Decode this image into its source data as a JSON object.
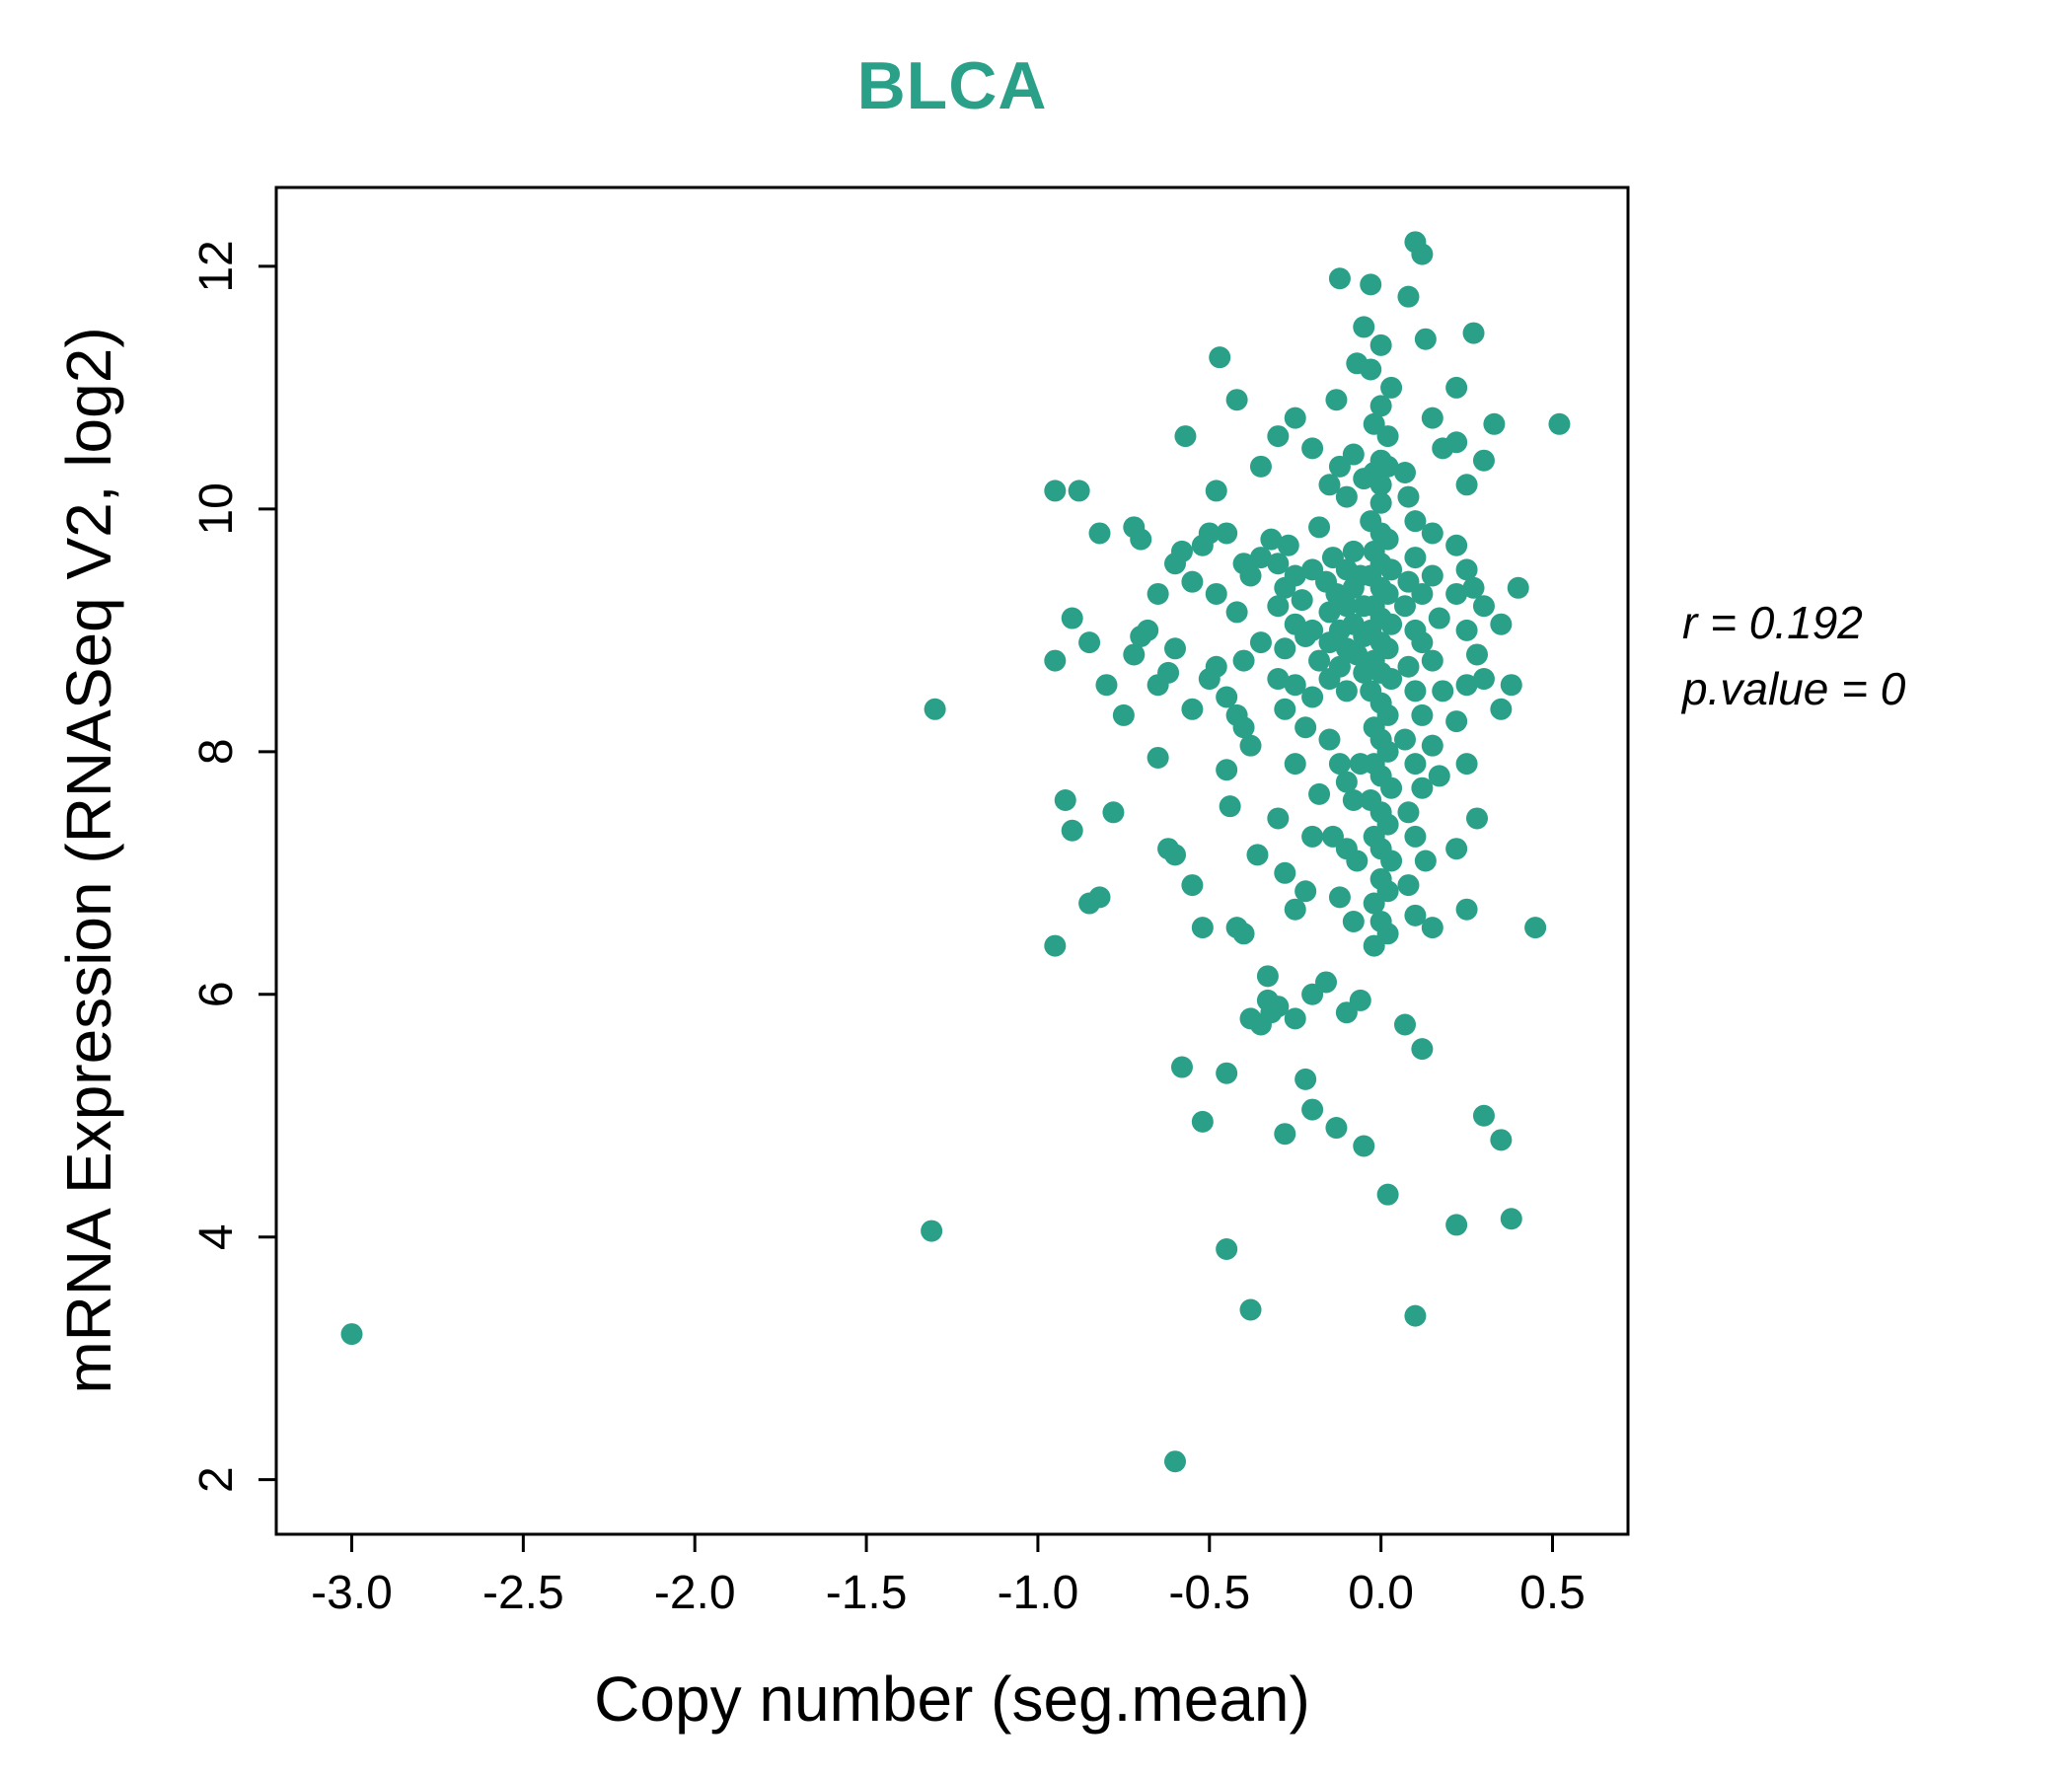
{
  "title": "BLCA",
  "accent_color": "#2BA089",
  "annotation": {
    "line1": "r = 0.192",
    "line2": "p.value = 0"
  },
  "chart_data": {
    "type": "scatter",
    "title": "BLCA",
    "xlabel": "Copy number (seg.mean)",
    "ylabel": "mRNA Expression (RNASeq V2, log2)",
    "xlim": [
      -3.22,
      0.72
    ],
    "ylim": [
      1.55,
      12.65
    ],
    "x_ticks": [
      -3.0,
      -2.5,
      -2.0,
      -1.5,
      -1.0,
      -0.5,
      0.0,
      0.5
    ],
    "x_tick_labels": [
      "-3.0",
      "-2.5",
      "-2.0",
      "-1.5",
      "-1.0",
      "-0.5",
      "0.0",
      "0.5"
    ],
    "y_ticks": [
      2,
      4,
      6,
      8,
      10,
      12
    ],
    "y_tick_labels": [
      "2",
      "4",
      "6",
      "8",
      "10",
      "12"
    ],
    "grid": false,
    "legend": "none",
    "point_color": "#2BA089",
    "correlation_r": 0.192,
    "p_value": 0,
    "annotations": [
      "r = 0.192",
      "p.value = 0"
    ],
    "points": [
      [
        -3.0,
        3.2
      ],
      [
        -1.3,
        8.35
      ],
      [
        -1.31,
        4.05
      ],
      [
        -0.6,
        2.15
      ],
      [
        -0.45,
        3.9
      ],
      [
        -0.38,
        3.4
      ],
      [
        -0.48,
        10.15
      ],
      [
        -0.95,
        10.15
      ],
      [
        -0.88,
        10.15
      ],
      [
        -0.9,
        9.1
      ],
      [
        -0.95,
        8.75
      ],
      [
        -0.92,
        7.6
      ],
      [
        -0.95,
        6.4
      ],
      [
        -0.9,
        7.35
      ],
      [
        -0.85,
        8.9
      ],
      [
        -0.82,
        9.8
      ],
      [
        -0.8,
        8.55
      ],
      [
        -0.85,
        6.75
      ],
      [
        -0.82,
        6.8
      ],
      [
        -0.78,
        7.5
      ],
      [
        -0.75,
        8.3
      ],
      [
        -0.72,
        9.85
      ],
      [
        -0.7,
        9.75
      ],
      [
        -0.72,
        8.8
      ],
      [
        -0.7,
        8.95
      ],
      [
        -0.68,
        9.0
      ],
      [
        -0.65,
        9.3
      ],
      [
        -0.65,
        8.55
      ],
      [
        -0.62,
        8.65
      ],
      [
        -0.6,
        9.55
      ],
      [
        -0.6,
        8.85
      ],
      [
        -0.58,
        9.65
      ],
      [
        -0.62,
        7.2
      ],
      [
        -0.6,
        7.15
      ],
      [
        -0.65,
        7.95
      ],
      [
        -0.58,
        5.4
      ],
      [
        -0.55,
        8.35
      ],
      [
        -0.55,
        9.4
      ],
      [
        -0.57,
        10.6
      ],
      [
        -0.55,
        6.9
      ],
      [
        -0.52,
        4.95
      ],
      [
        -0.52,
        9.7
      ],
      [
        -0.5,
        9.8
      ],
      [
        -0.5,
        8.6
      ],
      [
        -0.48,
        8.7
      ],
      [
        -0.48,
        9.3
      ],
      [
        -0.45,
        9.8
      ],
      [
        -0.45,
        8.45
      ],
      [
        -0.45,
        7.85
      ],
      [
        -0.42,
        8.3
      ],
      [
        -0.42,
        9.15
      ],
      [
        -0.4,
        9.55
      ],
      [
        -0.4,
        8.75
      ],
      [
        -0.4,
        8.2
      ],
      [
        -0.38,
        9.45
      ],
      [
        -0.38,
        8.05
      ],
      [
        -0.35,
        9.6
      ],
      [
        -0.35,
        8.9
      ],
      [
        -0.42,
        6.55
      ],
      [
        -0.4,
        6.5
      ],
      [
        -0.45,
        5.35
      ],
      [
        -0.38,
        5.8
      ],
      [
        -0.35,
        5.75
      ],
      [
        -0.52,
        6.55
      ],
      [
        -0.36,
        7.15
      ],
      [
        -0.44,
        7.55
      ],
      [
        -0.47,
        11.25
      ],
      [
        -0.42,
        10.9
      ],
      [
        -0.35,
        10.35
      ],
      [
        -0.33,
        5.95
      ],
      [
        -0.32,
        5.85
      ],
      [
        -0.32,
        9.75
      ],
      [
        -0.3,
        9.55
      ],
      [
        -0.3,
        9.2
      ],
      [
        -0.3,
        8.6
      ],
      [
        -0.28,
        9.35
      ],
      [
        -0.28,
        8.85
      ],
      [
        -0.28,
        8.35
      ],
      [
        -0.27,
        9.7
      ],
      [
        -0.25,
        9.45
      ],
      [
        -0.25,
        9.05
      ],
      [
        -0.25,
        8.55
      ],
      [
        -0.25,
        7.9
      ],
      [
        -0.23,
        9.25
      ],
      [
        -0.22,
        8.95
      ],
      [
        -0.22,
        8.2
      ],
      [
        -0.2,
        9.5
      ],
      [
        -0.2,
        9.0
      ],
      [
        -0.2,
        8.45
      ],
      [
        -0.3,
        7.45
      ],
      [
        -0.28,
        7.0
      ],
      [
        -0.25,
        6.7
      ],
      [
        -0.22,
        6.85
      ],
      [
        -0.2,
        7.3
      ],
      [
        -0.33,
        6.15
      ],
      [
        -0.3,
        5.9
      ],
      [
        -0.25,
        5.8
      ],
      [
        -0.2,
        6.0
      ],
      [
        -0.22,
        5.3
      ],
      [
        -0.3,
        10.6
      ],
      [
        -0.25,
        10.75
      ],
      [
        -0.2,
        10.5
      ],
      [
        -0.18,
        9.85
      ],
      [
        -0.18,
        8.75
      ],
      [
        -0.18,
        7.65
      ],
      [
        -0.28,
        4.85
      ],
      [
        -0.2,
        5.05
      ],
      [
        -0.12,
        11.9
      ],
      [
        -0.16,
        9.4
      ],
      [
        -0.15,
        9.15
      ],
      [
        -0.15,
        8.9
      ],
      [
        -0.15,
        8.6
      ],
      [
        -0.14,
        9.6
      ],
      [
        -0.13,
        9.3
      ],
      [
        -0.12,
        9.0
      ],
      [
        -0.12,
        8.7
      ],
      [
        -0.1,
        9.5
      ],
      [
        -0.1,
        9.2
      ],
      [
        -0.1,
        8.85
      ],
      [
        -0.1,
        8.5
      ],
      [
        -0.08,
        9.65
      ],
      [
        -0.08,
        9.35
      ],
      [
        -0.08,
        9.05
      ],
      [
        -0.07,
        8.8
      ],
      [
        -0.06,
        9.45
      ],
      [
        -0.05,
        9.2
      ],
      [
        -0.05,
        8.95
      ],
      [
        -0.05,
        8.65
      ],
      [
        -0.15,
        8.1
      ],
      [
        -0.12,
        7.9
      ],
      [
        -0.1,
        7.75
      ],
      [
        -0.08,
        7.6
      ],
      [
        -0.06,
        7.9
      ],
      [
        -0.14,
        7.3
      ],
      [
        -0.1,
        7.2
      ],
      [
        -0.07,
        7.1
      ],
      [
        -0.12,
        6.8
      ],
      [
        -0.08,
        6.6
      ],
      [
        -0.15,
        10.2
      ],
      [
        -0.12,
        10.35
      ],
      [
        -0.1,
        10.1
      ],
      [
        -0.08,
        10.45
      ],
      [
        -0.05,
        10.25
      ],
      [
        -0.13,
        10.9
      ],
      [
        -0.07,
        11.2
      ],
      [
        -0.05,
        11.5
      ],
      [
        -0.16,
        6.1
      ],
      [
        -0.1,
        5.85
      ],
      [
        -0.06,
        5.95
      ],
      [
        -0.13,
        4.9
      ],
      [
        -0.05,
        4.75
      ],
      [
        -0.03,
        11.85
      ],
      [
        0.0,
        10.4
      ],
      [
        0.0,
        10.2
      ],
      [
        0.0,
        10.05
      ],
      [
        -0.02,
        10.3
      ],
      [
        0.02,
        10.35
      ],
      [
        -0.03,
        9.9
      ],
      [
        0.0,
        9.8
      ],
      [
        0.02,
        9.75
      ],
      [
        -0.02,
        9.65
      ],
      [
        0.0,
        9.55
      ],
      [
        0.03,
        9.5
      ],
      [
        -0.03,
        9.45
      ],
      [
        0.0,
        9.35
      ],
      [
        0.02,
        9.3
      ],
      [
        -0.02,
        9.2
      ],
      [
        0.0,
        9.1
      ],
      [
        0.03,
        9.05
      ],
      [
        -0.03,
        9.0
      ],
      [
        0.0,
        8.9
      ],
      [
        0.02,
        8.85
      ],
      [
        -0.02,
        8.75
      ],
      [
        0.0,
        8.65
      ],
      [
        0.03,
        8.6
      ],
      [
        -0.03,
        8.5
      ],
      [
        0.0,
        8.4
      ],
      [
        0.02,
        8.3
      ],
      [
        -0.02,
        8.2
      ],
      [
        0.0,
        8.1
      ],
      [
        0.02,
        8.0
      ],
      [
        -0.02,
        7.9
      ],
      [
        0.0,
        7.8
      ],
      [
        0.03,
        7.7
      ],
      [
        -0.03,
        7.6
      ],
      [
        0.0,
        7.5
      ],
      [
        0.02,
        7.4
      ],
      [
        -0.02,
        7.3
      ],
      [
        0.0,
        7.2
      ],
      [
        0.03,
        7.1
      ],
      [
        0.0,
        6.95
      ],
      [
        0.02,
        6.85
      ],
      [
        -0.02,
        6.75
      ],
      [
        0.0,
        6.6
      ],
      [
        0.02,
        6.5
      ],
      [
        -0.02,
        6.4
      ],
      [
        0.02,
        10.6
      ],
      [
        -0.02,
        10.7
      ],
      [
        0.0,
        10.85
      ],
      [
        0.03,
        11.0
      ],
      [
        -0.03,
        11.15
      ],
      [
        0.0,
        11.35
      ],
      [
        0.07,
        10.3
      ],
      [
        0.08,
        10.1
      ],
      [
        0.1,
        9.9
      ],
      [
        0.1,
        9.6
      ],
      [
        0.08,
        9.4
      ],
      [
        0.07,
        9.2
      ],
      [
        0.1,
        9.0
      ],
      [
        0.12,
        9.3
      ],
      [
        0.12,
        8.9
      ],
      [
        0.08,
        8.7
      ],
      [
        0.1,
        8.5
      ],
      [
        0.12,
        8.3
      ],
      [
        0.07,
        8.1
      ],
      [
        0.1,
        7.9
      ],
      [
        0.12,
        7.7
      ],
      [
        0.08,
        7.5
      ],
      [
        0.1,
        7.3
      ],
      [
        0.13,
        7.1
      ],
      [
        0.08,
        6.9
      ],
      [
        0.1,
        6.65
      ],
      [
        0.15,
        9.8
      ],
      [
        0.15,
        9.45
      ],
      [
        0.17,
        9.1
      ],
      [
        0.15,
        8.75
      ],
      [
        0.18,
        8.5
      ],
      [
        0.15,
        8.05
      ],
      [
        0.17,
        7.8
      ],
      [
        0.15,
        6.55
      ],
      [
        0.12,
        5.55
      ],
      [
        0.07,
        5.75
      ],
      [
        0.1,
        12.2
      ],
      [
        0.12,
        12.1
      ],
      [
        0.08,
        11.75
      ],
      [
        0.15,
        10.75
      ],
      [
        0.18,
        10.5
      ],
      [
        0.13,
        11.4
      ],
      [
        0.1,
        3.35
      ],
      [
        0.02,
        4.35
      ],
      [
        0.22,
        9.7
      ],
      [
        0.22,
        9.3
      ],
      [
        0.25,
        9.5
      ],
      [
        0.25,
        9.0
      ],
      [
        0.27,
        9.35
      ],
      [
        0.28,
        8.8
      ],
      [
        0.25,
        8.55
      ],
      [
        0.3,
        9.2
      ],
      [
        0.3,
        8.6
      ],
      [
        0.22,
        8.25
      ],
      [
        0.25,
        7.9
      ],
      [
        0.28,
        7.45
      ],
      [
        0.22,
        7.2
      ],
      [
        0.3,
        10.4
      ],
      [
        0.25,
        10.2
      ],
      [
        0.22,
        10.55
      ],
      [
        0.33,
        10.7
      ],
      [
        0.27,
        11.45
      ],
      [
        0.22,
        11.0
      ],
      [
        0.35,
        9.05
      ],
      [
        0.38,
        8.55
      ],
      [
        0.35,
        8.35
      ],
      [
        0.4,
        9.35
      ],
      [
        0.25,
        6.7
      ],
      [
        0.3,
        5.0
      ],
      [
        0.35,
        4.8
      ],
      [
        0.22,
        4.1
      ],
      [
        0.38,
        4.15
      ],
      [
        0.45,
        6.55
      ],
      [
        0.52,
        10.7
      ]
    ]
  }
}
